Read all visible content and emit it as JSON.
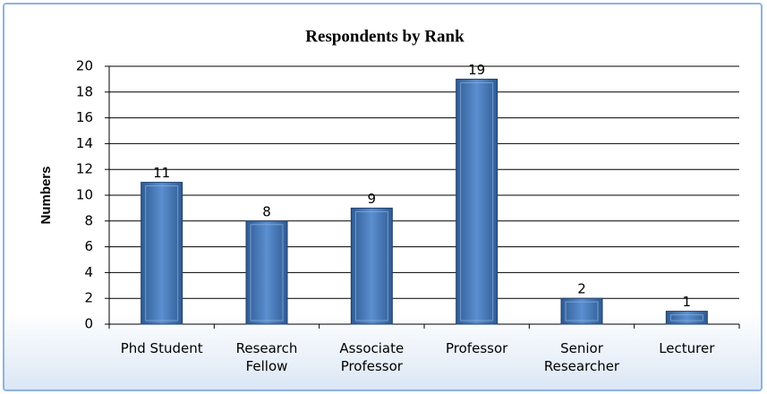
{
  "chart_data": {
    "type": "bar",
    "title": "Respondents by Rank",
    "y_label": "Numbers",
    "categories": [
      "Phd Student",
      "Research Fellow",
      "Associate Professor",
      "Professor",
      "Senior Researcher",
      "Lecturer"
    ],
    "values": [
      11,
      8,
      9,
      19,
      2,
      1
    ],
    "color": "#4f81bd",
    "ylim": [
      0,
      20
    ],
    "yticks": [
      0,
      2,
      4,
      6,
      8,
      10,
      12,
      14,
      16,
      18,
      20
    ],
    "grid": true
  }
}
